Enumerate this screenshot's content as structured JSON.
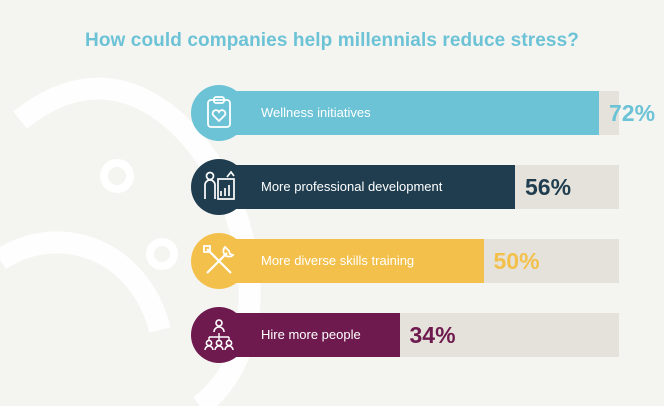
{
  "chart_data": {
    "type": "bar",
    "orientation": "horizontal",
    "title": "How could companies help millennials reduce stress?",
    "categories": [
      "Wellness initiatives",
      "More professional development",
      "More diverse skills training",
      "Hire more people"
    ],
    "values": [
      72,
      56,
      50,
      34
    ],
    "value_labels": [
      "72%",
      "56%",
      "50%",
      "34%"
    ],
    "xlim": [
      0,
      100
    ],
    "grid": false,
    "legend": "none",
    "colors": [
      "#6cc3d6",
      "#1f3d4f",
      "#f3c14b",
      "#6e1a4e"
    ],
    "icons": [
      "clipboard-heart-icon",
      "presentation-icon",
      "tools-icon",
      "team-hierarchy-icon"
    ]
  },
  "theme": {
    "background": "#f4f4f1",
    "track": "#e4e2da",
    "title_color": "#6cc3d6"
  }
}
